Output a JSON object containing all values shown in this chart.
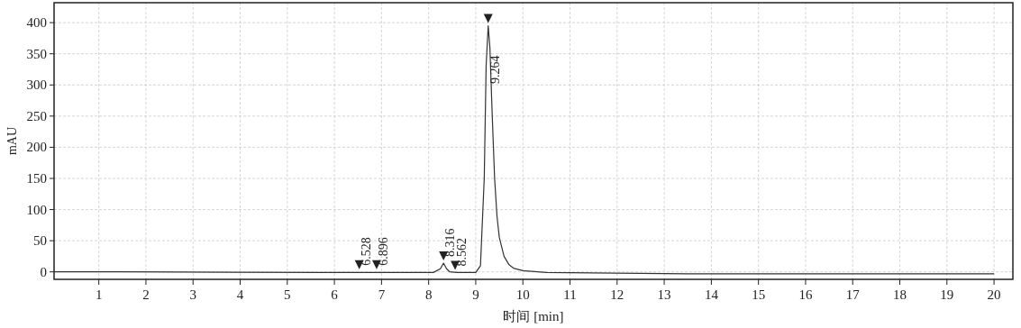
{
  "chart_data": {
    "type": "line",
    "xlabel": "时间 [min]",
    "ylabel": "mAU",
    "x": [
      0.05,
      1.5,
      5.7,
      6.5,
      8.1,
      8.25,
      8.316,
      8.38,
      8.45,
      8.6,
      9.0,
      9.1,
      9.18,
      9.22,
      9.264,
      9.3,
      9.35,
      9.4,
      9.45,
      9.5,
      9.6,
      9.7,
      9.8,
      10.0,
      10.5,
      13.5,
      20.0
    ],
    "series": [
      {
        "color": "#333333",
        "values": [
          0,
          0,
          -1,
          -1,
          -1,
          5,
          14,
          5,
          0,
          -1,
          -1,
          10,
          150,
          330,
          395,
          360,
          250,
          150,
          90,
          55,
          25,
          12,
          6,
          2,
          -1,
          -3,
          -3
        ]
      }
    ],
    "xlim": [
      0.05,
      20.4
    ],
    "ylim": [
      -12,
      432
    ],
    "xticks": [
      1,
      2,
      3,
      4,
      5,
      6,
      7,
      8,
      9,
      10,
      11,
      12,
      13,
      14,
      15,
      16,
      17,
      18,
      19,
      20
    ],
    "yticks": [
      0,
      50,
      100,
      150,
      200,
      250,
      300,
      350,
      400
    ],
    "grid": true,
    "annotations": [
      {
        "text": "6.528",
        "x": 6.528,
        "y": 0
      },
      {
        "text": "6.896",
        "x": 6.896,
        "y": 0
      },
      {
        "text": "8.316",
        "x": 8.316,
        "y": 14
      },
      {
        "text": "8.562",
        "x": 8.562,
        "y": -1
      },
      {
        "text": "9.264",
        "x": 9.264,
        "y": 395
      }
    ]
  }
}
